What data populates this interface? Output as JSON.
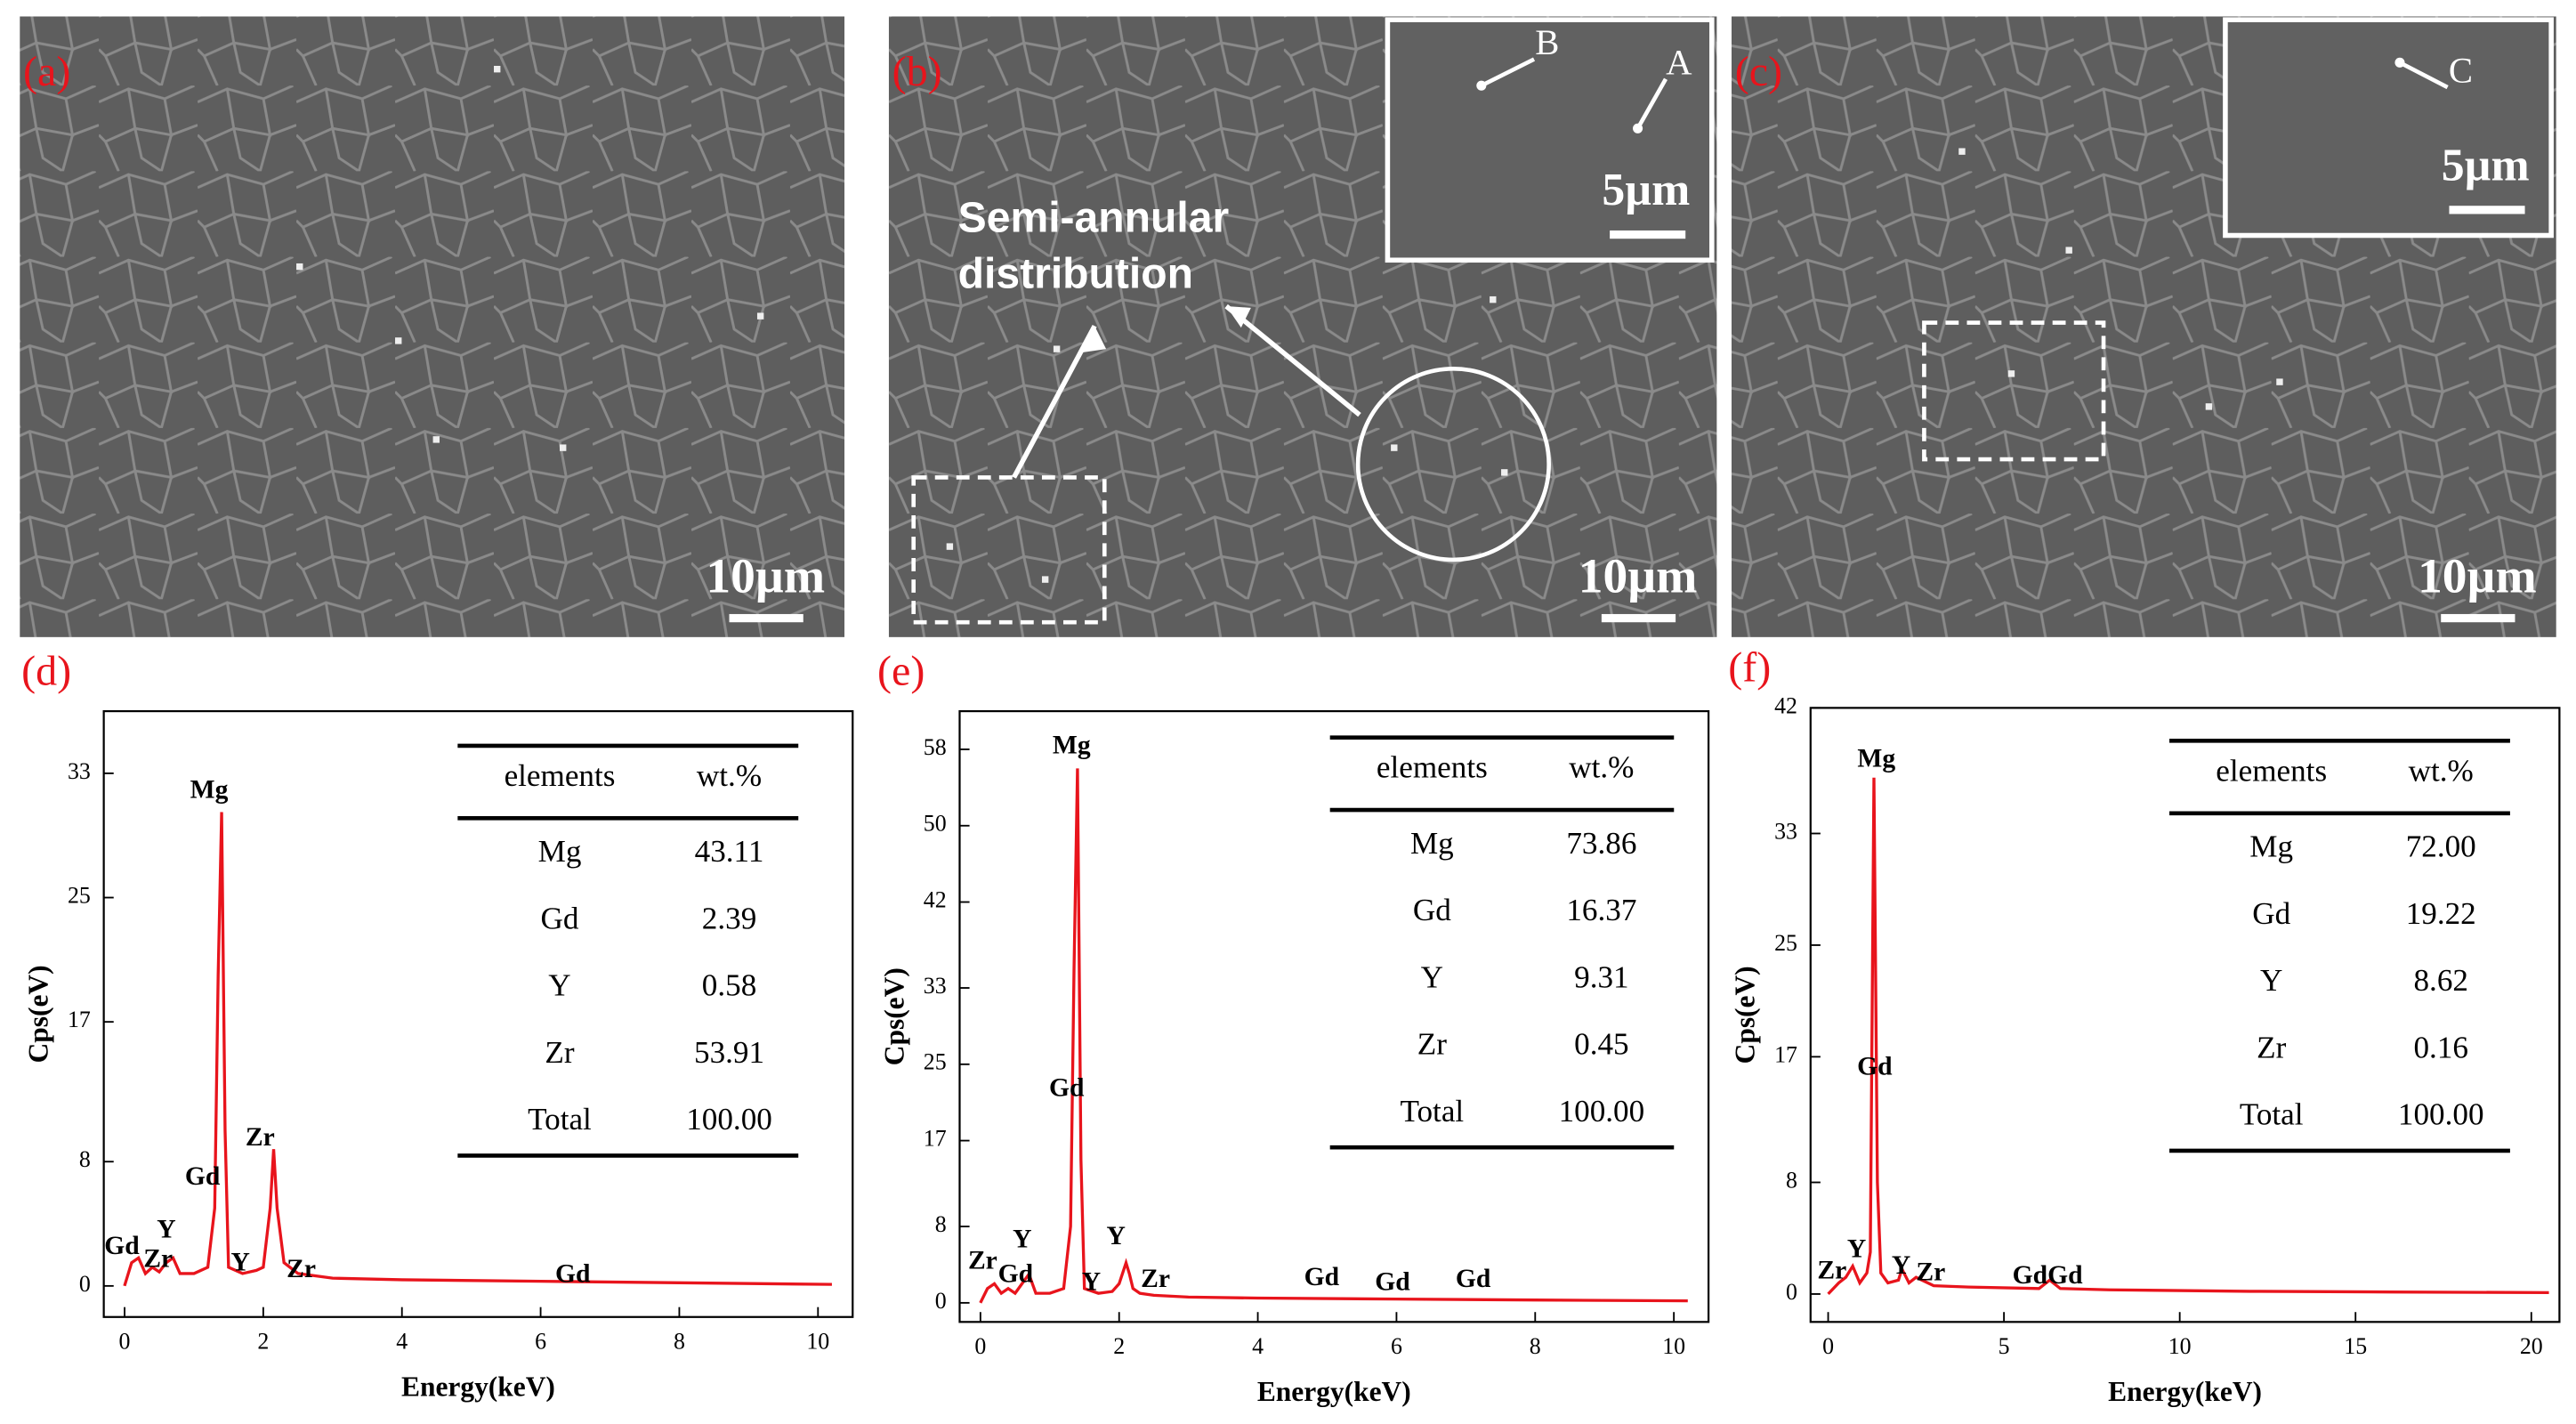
{
  "images": [
    {
      "label": "(a)",
      "scale": "10µm"
    },
    {
      "label": "(b)",
      "scale": "10µm",
      "inset_scale": "5µm",
      "markers": [
        "B",
        "A"
      ],
      "annotation": [
        "Semi-annular",
        "distribution"
      ]
    },
    {
      "label": "(c)",
      "scale": "10µm",
      "inset_scale": "5µm",
      "markers": [
        "C"
      ]
    }
  ],
  "chart_data": [
    {
      "type": "line",
      "label": "(d)",
      "x_label": "Energy(keV)",
      "y_label": "Cps(eV)",
      "color": "#e8141c",
      "x": [
        0,
        0.1,
        0.2,
        0.3,
        0.4,
        0.5,
        0.6,
        0.7,
        0.8,
        1.0,
        1.2,
        1.3,
        1.35,
        1.4,
        1.45,
        1.5,
        1.7,
        1.9,
        2.0,
        2.1,
        2.15,
        2.2,
        2.3,
        2.5,
        3,
        4,
        6,
        8,
        10.2
      ],
      "values": [
        0,
        1.5,
        1.8,
        0.8,
        1.2,
        0.9,
        1.5,
        1.8,
        0.8,
        0.8,
        1.2,
        5,
        20,
        30.5,
        10,
        1.2,
        0.8,
        1,
        1.2,
        5,
        8.8,
        5,
        1.5,
        0.8,
        0.5,
        0.4,
        0.3,
        0.2,
        0.1
      ],
      "xlim": [
        -0.3,
        10.5
      ],
      "xticks": [
        0,
        2,
        4,
        6,
        8,
        10
      ],
      "ylim": [
        -2,
        37
      ],
      "yticks": [
        0,
        8,
        17,
        25,
        33
      ],
      "annotations": [
        "Mg",
        "Gd",
        "Zr",
        "Y",
        "Zr",
        "Gd",
        "Gd",
        "Zr",
        "Y"
      ],
      "table": {
        "header": [
          "elements",
          "wt.%"
        ],
        "rows": [
          [
            "Mg",
            "43.11"
          ],
          [
            "Gd",
            "2.39"
          ],
          [
            "Y",
            "0.58"
          ],
          [
            "Zr",
            "53.91"
          ],
          [
            "Total",
            "100.00"
          ]
        ]
      }
    },
    {
      "type": "line",
      "label": "(e)",
      "x_label": "Energy(keV)",
      "y_label": "Cps(eV)",
      "color": "#e8141c",
      "x": [
        0,
        0.1,
        0.2,
        0.3,
        0.4,
        0.5,
        0.6,
        0.7,
        0.8,
        1.0,
        1.2,
        1.3,
        1.35,
        1.4,
        1.45,
        1.5,
        1.7,
        1.9,
        2.0,
        2.1,
        2.15,
        2.2,
        2.3,
        2.5,
        3,
        4,
        6,
        8,
        10.2
      ],
      "values": [
        0,
        1.5,
        2,
        1,
        1.5,
        1,
        2,
        3,
        1,
        1,
        1.5,
        8,
        35,
        56,
        15,
        1.5,
        1,
        1.2,
        2,
        4.2,
        3,
        1.5,
        1,
        0.8,
        0.6,
        0.5,
        0.4,
        0.3,
        0.2
      ],
      "xlim": [
        -0.3,
        10.5
      ],
      "xticks": [
        0,
        2,
        4,
        6,
        8,
        10
      ],
      "ylim": [
        -2,
        62
      ],
      "yticks": [
        0,
        8,
        17,
        25,
        33,
        42,
        50,
        58
      ],
      "annotations": [
        "Mg",
        "Gd",
        "Y",
        "Y",
        "Zr",
        "Gd",
        "Y",
        "Zr",
        "Gd",
        "Gd",
        "Gd"
      ],
      "table": {
        "header": [
          "elements",
          "wt.%"
        ],
        "rows": [
          [
            "Mg",
            "73.86"
          ],
          [
            "Gd",
            "16.37"
          ],
          [
            "Y",
            "9.31"
          ],
          [
            "Zr",
            "0.45"
          ],
          [
            "Total",
            "100.00"
          ]
        ]
      }
    },
    {
      "type": "line",
      "label": "(f)",
      "x_label": "Energy(keV)",
      "y_label": "Cps(eV)",
      "color": "#e8141c",
      "x": [
        0,
        0.3,
        0.5,
        0.7,
        0.9,
        1.1,
        1.2,
        1.3,
        1.4,
        1.5,
        1.7,
        2.0,
        2.1,
        2.3,
        2.5,
        3,
        4,
        6,
        6.3,
        6.6,
        8,
        12,
        16,
        20.5
      ],
      "values": [
        0,
        0.8,
        1.2,
        2,
        0.8,
        1.5,
        3,
        37,
        8,
        1.5,
        0.8,
        1,
        1.8,
        0.8,
        1.2,
        0.6,
        0.5,
        0.4,
        1,
        0.4,
        0.3,
        0.2,
        0.15,
        0.1
      ],
      "xlim": [
        -0.5,
        20.8
      ],
      "xticks": [
        0,
        5,
        10,
        15,
        20
      ],
      "ylim": [
        -2,
        42
      ],
      "yticks": [
        0,
        8,
        17,
        25,
        33,
        42
      ],
      "annotations": [
        "Mg",
        "Gd",
        "Y",
        "Zr",
        "Y",
        "Zr",
        "GdGd"
      ],
      "table": {
        "header": [
          "elements",
          "wt.%"
        ],
        "rows": [
          [
            "Mg",
            "72.00"
          ],
          [
            "Gd",
            "19.22"
          ],
          [
            "Y",
            "8.62"
          ],
          [
            "Zr",
            "0.16"
          ],
          [
            "Total",
            "100.00"
          ]
        ]
      }
    }
  ]
}
